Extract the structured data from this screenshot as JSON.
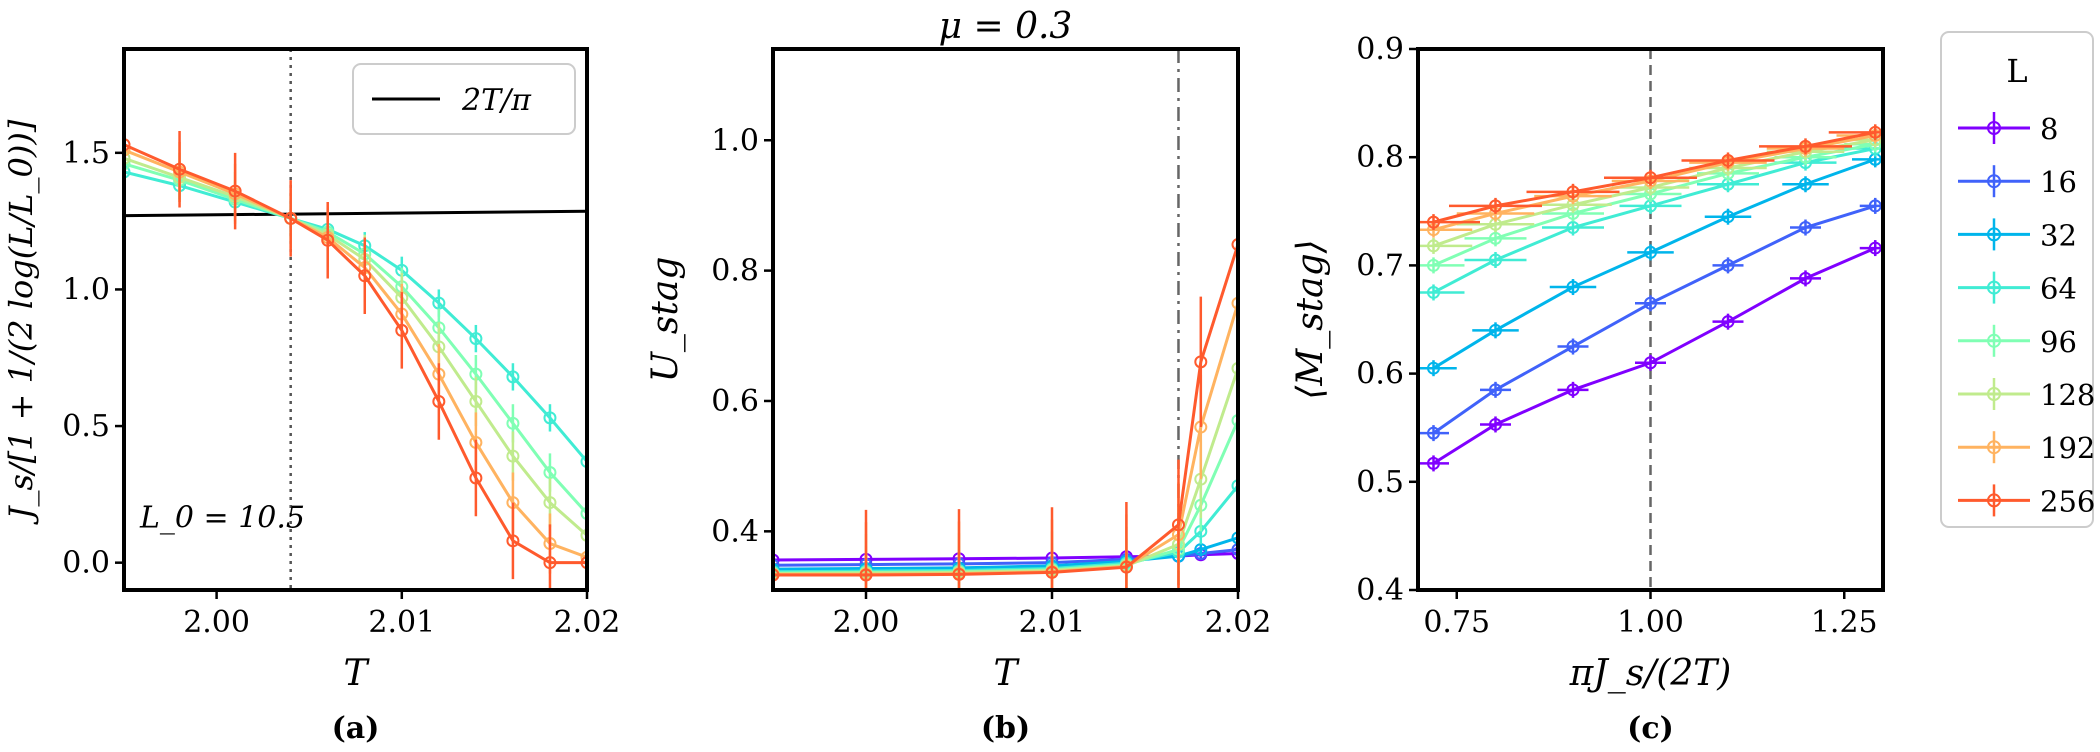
{
  "colors": {
    "8": "#8000ff",
    "16": "#4062fa",
    "32": "#00b5eb",
    "64": "#40ecd4",
    "96": "#80ffb4",
    "128": "#c0eb8d",
    "192": "#ffb360",
    "256": "#ff5a2d"
  },
  "chart_data": [
    {
      "type": "line",
      "panel_label": "(a)",
      "xlabel": "T",
      "ylabel": "J_s/[1 + 1/(2 log(L/L_0))]",
      "xlim": [
        1.995,
        2.02
      ],
      "ylim": [
        -0.1,
        1.88
      ],
      "xticks": [
        2.0,
        2.01,
        2.02
      ],
      "xtick_labels": [
        "2.00",
        "2.01",
        "2.02"
      ],
      "yticks": [
        0.0,
        0.5,
        1.0,
        1.5
      ],
      "ytick_labels": [
        "0.0",
        "0.5",
        "1.0",
        "1.5"
      ],
      "legend_placement": "top-right",
      "legend_entries": [
        "2T/π"
      ],
      "annotation": "L_0 = 10.5",
      "vline": 2.004,
      "reference_line": {
        "name": "2T/π",
        "x": [
          1.995,
          2.02
        ],
        "y": [
          1.27,
          1.286
        ]
      },
      "series": [
        {
          "name": "64",
          "x": [
            1.995,
            1.998,
            2.001,
            2.004,
            2.006,
            2.008,
            2.01,
            2.012,
            2.014,
            2.016,
            2.018,
            2.02
          ],
          "y": [
            1.43,
            1.38,
            1.32,
            1.26,
            1.22,
            1.16,
            1.07,
            0.95,
            0.82,
            0.68,
            0.53,
            0.37
          ],
          "err": 0.05
        },
        {
          "name": "96",
          "x": [
            1.995,
            1.998,
            2.001,
            2.004,
            2.006,
            2.008,
            2.01,
            2.012,
            2.014,
            2.016,
            2.018,
            2.02
          ],
          "y": [
            1.46,
            1.4,
            1.33,
            1.26,
            1.21,
            1.13,
            1.01,
            0.86,
            0.69,
            0.51,
            0.33,
            0.18
          ],
          "err": 0.07
        },
        {
          "name": "128",
          "x": [
            1.995,
            1.998,
            2.001,
            2.004,
            2.006,
            2.008,
            2.01,
            2.012,
            2.014,
            2.016,
            2.018,
            2.02
          ],
          "y": [
            1.48,
            1.41,
            1.34,
            1.26,
            1.2,
            1.11,
            0.97,
            0.79,
            0.59,
            0.39,
            0.22,
            0.1
          ],
          "err": 0.09
        },
        {
          "name": "192",
          "x": [
            1.995,
            1.998,
            2.001,
            2.004,
            2.006,
            2.008,
            2.01,
            2.012,
            2.014,
            2.016,
            2.018,
            2.02
          ],
          "y": [
            1.51,
            1.43,
            1.35,
            1.26,
            1.19,
            1.08,
            0.91,
            0.69,
            0.44,
            0.22,
            0.07,
            0.02
          ],
          "err": 0.11
        },
        {
          "name": "256",
          "x": [
            1.995,
            1.998,
            2.001,
            2.004,
            2.006,
            2.008,
            2.01,
            2.012,
            2.014,
            2.016,
            2.018,
            2.02
          ],
          "y": [
            1.53,
            1.44,
            1.36,
            1.26,
            1.18,
            1.05,
            0.85,
            0.59,
            0.31,
            0.08,
            0.0,
            0.0
          ],
          "err": 0.14
        }
      ]
    },
    {
      "type": "line",
      "panel_label": "(b)",
      "title": "μ = 0.3",
      "xlabel": "T",
      "ylabel": "U_stag",
      "xlim": [
        1.995,
        2.02
      ],
      "ylim": [
        0.31,
        1.14
      ],
      "xticks": [
        2.0,
        2.01,
        2.02
      ],
      "xtick_labels": [
        "2.00",
        "2.01",
        "2.02"
      ],
      "yticks": [
        0.4,
        0.6,
        0.8,
        1.0
      ],
      "ytick_labels": [
        "0.4",
        "0.6",
        "0.8",
        "1.0"
      ],
      "vline": 2.0168,
      "series": [
        {
          "name": "8",
          "x": [
            1.995,
            2.0,
            2.005,
            2.01,
            2.014,
            2.0168,
            2.018,
            2.02
          ],
          "y": [
            0.356,
            0.357,
            0.358,
            0.359,
            0.361,
            0.362,
            0.364,
            0.366
          ],
          "err": 0.005
        },
        {
          "name": "16",
          "x": [
            1.995,
            2.0,
            2.005,
            2.01,
            2.014,
            2.0168,
            2.018,
            2.02
          ],
          "y": [
            0.348,
            0.349,
            0.35,
            0.352,
            0.357,
            0.362,
            0.366,
            0.372
          ],
          "err": 0.006
        },
        {
          "name": "32",
          "x": [
            1.995,
            2.0,
            2.005,
            2.01,
            2.014,
            2.0168,
            2.018,
            2.02
          ],
          "y": [
            0.342,
            0.343,
            0.344,
            0.347,
            0.354,
            0.362,
            0.372,
            0.39
          ],
          "err": 0.008
        },
        {
          "name": "64",
          "x": [
            1.995,
            2.0,
            2.005,
            2.01,
            2.014,
            2.0168,
            2.018,
            2.02
          ],
          "y": [
            0.338,
            0.339,
            0.34,
            0.343,
            0.351,
            0.368,
            0.4,
            0.47
          ],
          "err": 0.02
        },
        {
          "name": "96",
          "x": [
            1.995,
            2.0,
            2.005,
            2.01,
            2.014,
            2.0168,
            2.018,
            2.02
          ],
          "y": [
            0.336,
            0.337,
            0.338,
            0.341,
            0.349,
            0.372,
            0.44,
            0.57
          ],
          "err": 0.04
        },
        {
          "name": "128",
          "x": [
            1.995,
            2.0,
            2.005,
            2.01,
            2.014,
            2.0168,
            2.018,
            2.02
          ],
          "y": [
            0.335,
            0.336,
            0.337,
            0.34,
            0.347,
            0.38,
            0.48,
            0.65
          ],
          "err": 0.06
        },
        {
          "name": "192",
          "x": [
            1.995,
            2.0,
            2.005,
            2.01,
            2.014,
            2.0168,
            2.018,
            2.02
          ],
          "y": [
            0.334,
            0.334,
            0.335,
            0.338,
            0.346,
            0.395,
            0.56,
            0.75
          ],
          "err": 0.08
        },
        {
          "name": "256",
          "x": [
            1.995,
            2.0,
            2.005,
            2.01,
            2.014,
            2.0168,
            2.018,
            2.02
          ],
          "y": [
            0.333,
            0.333,
            0.334,
            0.337,
            0.345,
            0.41,
            0.66,
            0.84
          ],
          "err": 0.1
        }
      ]
    },
    {
      "type": "line",
      "panel_label": "(c)",
      "xlabel": "πJ_s/(2T)",
      "ylabel": "⟨M_stag⟩",
      "xlim": [
        0.7,
        1.3
      ],
      "ylim": [
        0.4,
        0.9
      ],
      "xticks": [
        0.75,
        1.0,
        1.25
      ],
      "xtick_labels": [
        "0.75",
        "1.00",
        "1.25"
      ],
      "yticks": [
        0.4,
        0.5,
        0.6,
        0.7,
        0.8,
        0.9
      ],
      "ytick_labels": [
        "0.4",
        "0.5",
        "0.6",
        "0.7",
        "0.8",
        "0.9"
      ],
      "vline": 1.0,
      "legend_placement": "outside-right",
      "legend_title": "L",
      "series": [
        {
          "name": "8",
          "x": [
            0.72,
            0.8,
            0.9,
            1.0,
            1.1,
            1.2,
            1.29
          ],
          "y": [
            0.517,
            0.553,
            0.585,
            0.61,
            0.648,
            0.688,
            0.716
          ],
          "xerr": 0.02
        },
        {
          "name": "16",
          "x": [
            0.72,
            0.8,
            0.9,
            1.0,
            1.1,
            1.2,
            1.29
          ],
          "y": [
            0.545,
            0.585,
            0.625,
            0.665,
            0.7,
            0.735,
            0.755
          ],
          "xerr": 0.02
        },
        {
          "name": "32",
          "x": [
            0.72,
            0.8,
            0.9,
            1.0,
            1.1,
            1.2,
            1.29
          ],
          "y": [
            0.605,
            0.64,
            0.68,
            0.712,
            0.745,
            0.775,
            0.798
          ],
          "xerr": 0.03
        },
        {
          "name": "64",
          "x": [
            0.72,
            0.8,
            0.9,
            1.0,
            1.1,
            1.2,
            1.29
          ],
          "y": [
            0.675,
            0.705,
            0.735,
            0.755,
            0.775,
            0.795,
            0.808
          ],
          "xerr": 0.04
        },
        {
          "name": "96",
          "x": [
            0.72,
            0.8,
            0.9,
            1.0,
            1.1,
            1.2,
            1.29
          ],
          "y": [
            0.7,
            0.725,
            0.748,
            0.766,
            0.785,
            0.8,
            0.812
          ],
          "xerr": 0.04
        },
        {
          "name": "128",
          "x": [
            0.72,
            0.8,
            0.9,
            1.0,
            1.1,
            1.2,
            1.29
          ],
          "y": [
            0.718,
            0.738,
            0.756,
            0.772,
            0.79,
            0.805,
            0.816
          ],
          "xerr": 0.05
        },
        {
          "name": "192",
          "x": [
            0.72,
            0.8,
            0.9,
            1.0,
            1.1,
            1.2,
            1.29
          ],
          "y": [
            0.733,
            0.748,
            0.764,
            0.778,
            0.795,
            0.808,
            0.82
          ],
          "xerr": 0.05
        },
        {
          "name": "256",
          "x": [
            0.72,
            0.8,
            0.9,
            1.0,
            1.1,
            1.2,
            1.29
          ],
          "y": [
            0.74,
            0.755,
            0.768,
            0.781,
            0.797,
            0.81,
            0.823
          ],
          "xerr": 0.06
        }
      ]
    }
  ]
}
